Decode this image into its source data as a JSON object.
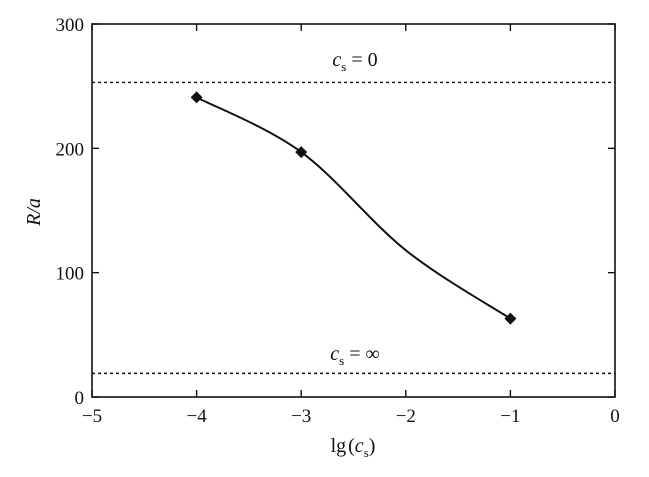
{
  "chart_data": {
    "type": "line",
    "xlabel_main": "lg",
    "xlabel_paren_open": "(",
    "xlabel_var": "c",
    "xlabel_sub": "s",
    "xlabel_paren_close": ")",
    "ylabel": "R/a",
    "xlim": [
      -5,
      0
    ],
    "ylim": [
      0,
      300
    ],
    "x_ticks": [
      -5,
      -4,
      -3,
      -2,
      -1,
      0
    ],
    "x_tick_labels": [
      "−5",
      "−4",
      "−3",
      "−2",
      "−1",
      "0"
    ],
    "y_ticks": [
      0,
      100,
      200,
      300
    ],
    "y_tick_labels": [
      "0",
      "100",
      "200",
      "300"
    ],
    "series": [
      {
        "x": [
          -4,
          -3,
          -2,
          -1
        ],
        "y": [
          241,
          197,
          118,
          63
        ],
        "markers": [
          true,
          true,
          false,
          true
        ],
        "color": "#111111"
      }
    ],
    "reference_lines": [
      {
        "y": 253,
        "style": "dotted",
        "label_var": "c",
        "label_sub": "s",
        "label_rest": " = 0"
      },
      {
        "y": 19,
        "style": "dotted",
        "label_var": "c",
        "label_sub": "s",
        "label_rest": " = ∞"
      }
    ],
    "grid": false,
    "legend": "none"
  }
}
